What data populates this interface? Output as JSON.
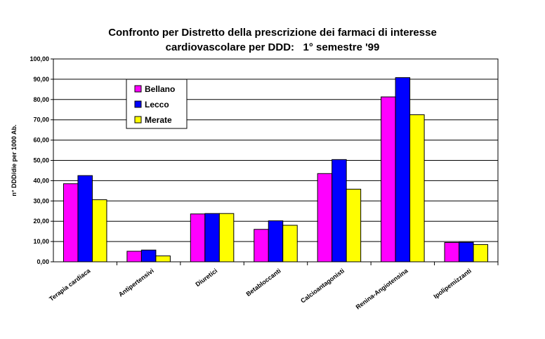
{
  "chart_data": {
    "type": "bar",
    "title_line1": "Confronto per Distretto della prescrizione dei farmaci di interesse",
    "title_line2": "cardiovascolare per DDD:   1° semestre '99",
    "xlabel": "",
    "ylabel": "n° DDD/die per 1000 Ab.",
    "ylim": [
      0,
      100
    ],
    "yticks": [
      "0,00",
      "10,00",
      "20,00",
      "30,00",
      "40,00",
      "50,00",
      "60,00",
      "70,00",
      "80,00",
      "90,00",
      "100,00"
    ],
    "categories": [
      "Terapia cardiaca",
      "Antipertensivi",
      "Diuretici",
      "Betabloccanti",
      "Calcioantagonisti",
      "Renina-Angiotensina",
      "Ipolipemizzanti"
    ],
    "series": [
      {
        "name": "Bellano",
        "color": "#ff00ff",
        "values": [
          38.5,
          5.2,
          23.6,
          16.0,
          43.5,
          81.3,
          9.5
        ]
      },
      {
        "name": "Lecco",
        "color": "#0000ff",
        "values": [
          42.5,
          5.8,
          23.8,
          20.2,
          50.4,
          90.8,
          9.6
        ]
      },
      {
        "name": "Merate",
        "color": "#ffff00",
        "values": [
          30.6,
          2.9,
          23.8,
          18.0,
          35.8,
          72.5,
          8.5
        ]
      }
    ],
    "grid": true,
    "legend_position": "top-left"
  }
}
